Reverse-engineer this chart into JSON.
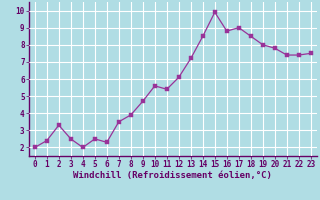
{
  "x": [
    0,
    1,
    2,
    3,
    4,
    5,
    6,
    7,
    8,
    9,
    10,
    11,
    12,
    13,
    14,
    15,
    16,
    17,
    18,
    19,
    20,
    21,
    22,
    23
  ],
  "y": [
    2.0,
    2.4,
    3.3,
    2.5,
    2.0,
    2.5,
    2.3,
    3.5,
    3.9,
    4.7,
    5.6,
    5.4,
    6.1,
    7.2,
    8.5,
    9.9,
    8.8,
    9.0,
    8.5,
    8.0,
    7.8,
    7.4,
    7.4,
    7.5
  ],
  "line_color": "#993399",
  "marker_color": "#993399",
  "bg_color": "#b0dde4",
  "grid_color": "#ffffff",
  "xlabel": "Windchill (Refroidissement éolien,°C)",
  "xlim": [
    -0.5,
    23.5
  ],
  "ylim": [
    1.5,
    10.5
  ],
  "yticks": [
    2,
    3,
    4,
    5,
    6,
    7,
    8,
    9,
    10
  ],
  "xticks": [
    0,
    1,
    2,
    3,
    4,
    5,
    6,
    7,
    8,
    9,
    10,
    11,
    12,
    13,
    14,
    15,
    16,
    17,
    18,
    19,
    20,
    21,
    22,
    23
  ],
  "axis_color": "#660066",
  "tick_color": "#660066",
  "label_fontsize": 6.5,
  "tick_fontsize": 5.5
}
